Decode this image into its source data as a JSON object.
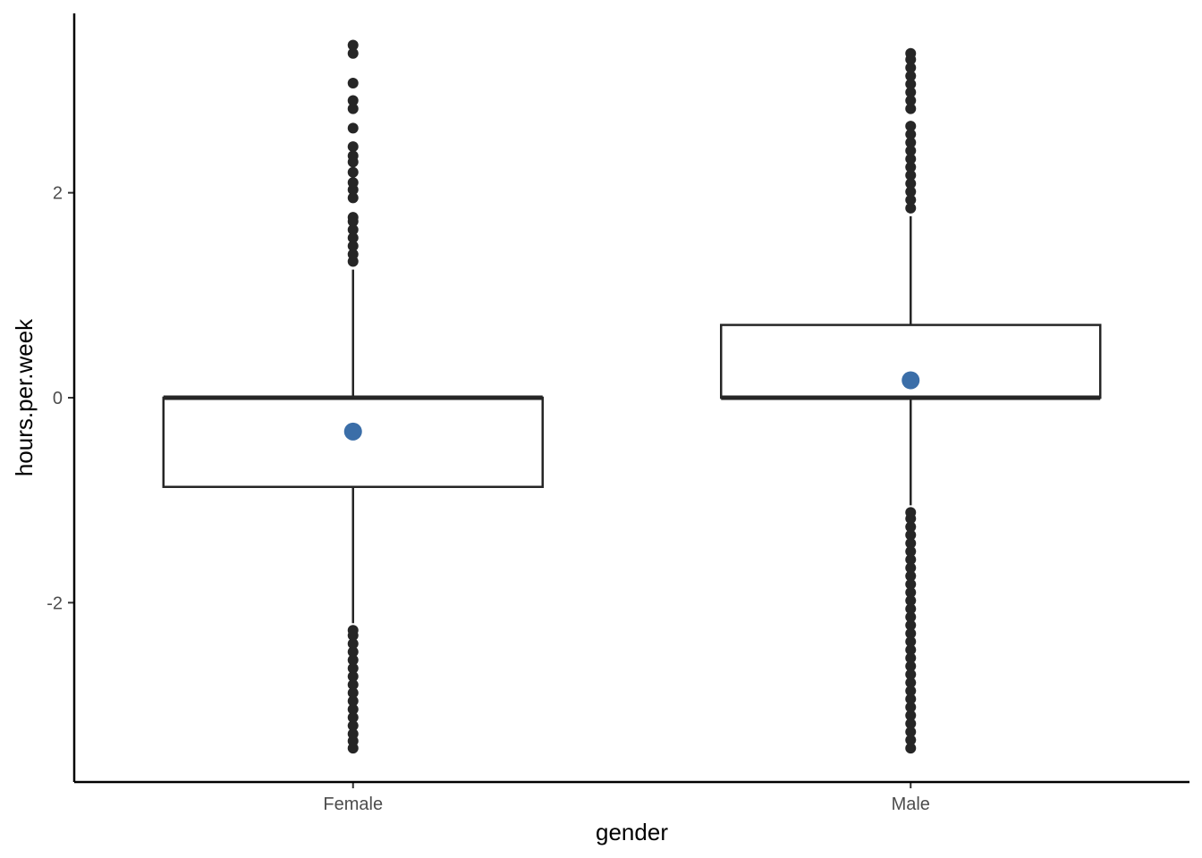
{
  "chart_data": {
    "type": "boxplot",
    "title": "",
    "xlabel": "gender",
    "ylabel": "hours.per.week",
    "categories": [
      "Female",
      "Male"
    ],
    "ylim": [
      -3.75,
      3.75
    ],
    "y_ticks": [
      -2,
      0,
      2
    ],
    "y_tick_labels": [
      "-2",
      "0",
      "2"
    ],
    "grid": false,
    "legend": "none",
    "colors": {
      "box_outline": "#262626",
      "outlier": "#262626",
      "mean_point": "#3b6ea8"
    },
    "boxes": [
      {
        "category": "Female",
        "whisker_low": -2.2,
        "q1": -0.87,
        "median": 0.0,
        "q3": 0.0,
        "whisker_high": 1.25,
        "mean": -0.33,
        "outliers": [
          -3.42,
          -3.35,
          -3.28,
          -3.2,
          -3.12,
          -3.04,
          -2.96,
          -2.88,
          -2.8,
          -2.72,
          -2.64,
          -2.56,
          -2.48,
          -2.4,
          -2.32,
          -2.27,
          1.33,
          1.4,
          1.48,
          1.56,
          1.64,
          1.72,
          1.76,
          1.95,
          2.03,
          2.1,
          2.2,
          2.3,
          2.36,
          2.45,
          2.63,
          2.82,
          2.9,
          3.07,
          3.36,
          3.44
        ]
      },
      {
        "category": "Male",
        "whisker_low": -1.05,
        "q1": 0.0,
        "median": 0.0,
        "q3": 0.71,
        "whisker_high": 1.77,
        "mean": 0.17,
        "outliers": [
          -3.42,
          -3.34,
          -3.26,
          -3.18,
          -3.1,
          -3.02,
          -2.94,
          -2.86,
          -2.78,
          -2.7,
          -2.62,
          -2.54,
          -2.46,
          -2.38,
          -2.3,
          -2.22,
          -2.14,
          -2.06,
          -1.98,
          -1.9,
          -1.82,
          -1.74,
          -1.66,
          -1.58,
          -1.5,
          -1.42,
          -1.34,
          -1.26,
          -1.18,
          -1.12,
          1.85,
          1.93,
          2.01,
          2.09,
          2.17,
          2.25,
          2.33,
          2.41,
          2.49,
          2.57,
          2.65,
          2.82,
          2.9,
          2.98,
          3.06,
          3.14,
          3.22,
          3.3,
          3.36
        ]
      }
    ]
  }
}
